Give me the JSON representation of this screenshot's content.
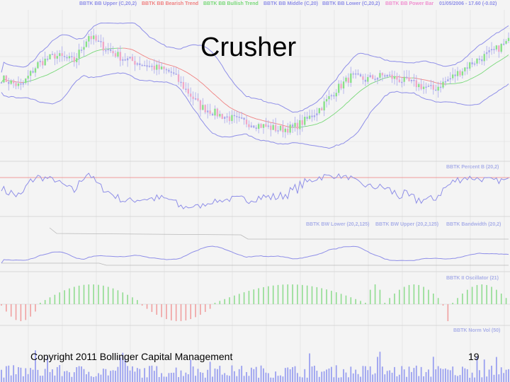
{
  "slide": {
    "title": "Crusher",
    "copyright": "Copyright 2011 Bollinger Capital Management",
    "page_number": "19"
  },
  "legend": [
    {
      "text": "BBTK BB Upper (C,20,2)",
      "color": "#8f8fe8"
    },
    {
      "text": "BBTK BB Bearish Trend",
      "color": "#f08080"
    },
    {
      "text": "BBTK BB Bullish Trend",
      "color": "#78d878"
    },
    {
      "text": "BBTK BB Middle (C,20)",
      "color": "#8f8fe8"
    },
    {
      "text": "BBTK BB Lower (C,20,2)",
      "color": "#8f8fe8"
    },
    {
      "text": "BBTK BB Power Bar",
      "color": "#f090d0"
    },
    {
      "text": "01/05/2006 - 17.60 (-0.02)",
      "color": "#8f8fe8"
    }
  ],
  "pane_labels": {
    "percent_b": "BBTK Percent B (20,2)",
    "bandwidth_lower": "BBTK BW Lower (20,2,125)",
    "bandwidth_upper": "BBTK BW Upper (20,2,125)",
    "bandwidth": "BBTK Bandwidth (20,2)",
    "oscillator": "BBTK II Oscillator (21)",
    "norm_vol": "BBTK Norm Vol (50)"
  },
  "colors": {
    "background": "#f4f4f4",
    "grid": "#dcdcdc",
    "band": "#8f8fe8",
    "bearish": "#f08080",
    "bullish": "#78d878",
    "osc_positive": "#90dc90",
    "osc_negative": "#f0a0a0",
    "volume": "#9aa0f0",
    "percent_b_ref": "#f08080",
    "bw_ref": "#b8b8b8",
    "candle_up": "#88e088",
    "candle_down": "#f0a8c8",
    "candle_neutral": "#a8a8ec"
  },
  "chart_data": {
    "type": "candlestick_with_indicators",
    "bars": 210,
    "price_close_path": [
      [
        0,
        20.2
      ],
      [
        8,
        19.6
      ],
      [
        15,
        21.2
      ],
      [
        22,
        21.8
      ],
      [
        30,
        21.4
      ],
      [
        36,
        23.2
      ],
      [
        42,
        22.4
      ],
      [
        50,
        21.6
      ],
      [
        58,
        21.2
      ],
      [
        66,
        20.8
      ],
      [
        70,
        20.6
      ],
      [
        76,
        19.4
      ],
      [
        82,
        18.2
      ],
      [
        90,
        17.6
      ],
      [
        98,
        17.2
      ],
      [
        106,
        16.9
      ],
      [
        114,
        16.6
      ],
      [
        120,
        16.7
      ],
      [
        126,
        17.3
      ],
      [
        132,
        18.2
      ],
      [
        138,
        19.4
      ],
      [
        144,
        20.3
      ],
      [
        150,
        20.1
      ],
      [
        158,
        20.4
      ],
      [
        166,
        20.0
      ],
      [
        172,
        19.7
      ],
      [
        178,
        19.4
      ],
      [
        186,
        20.3
      ],
      [
        194,
        21.3
      ],
      [
        202,
        22.0
      ],
      [
        210,
        22.9
      ]
    ],
    "last_value": 17.6,
    "last_change": -0.02,
    "oscillator_segments": [
      {
        "from": 0,
        "to": 16,
        "sign": "negative"
      },
      {
        "from": 16,
        "to": 58,
        "sign": "positive"
      },
      {
        "from": 58,
        "to": 88,
        "sign": "negative"
      },
      {
        "from": 88,
        "to": 150,
        "sign": "positive"
      },
      {
        "from": 150,
        "to": 158,
        "sign": "positive"
      },
      {
        "from": 158,
        "to": 182,
        "sign": "positive"
      },
      {
        "from": 182,
        "to": 186,
        "sign": "negative"
      },
      {
        "from": 186,
        "to": 210,
        "sign": "positive"
      }
    ]
  }
}
